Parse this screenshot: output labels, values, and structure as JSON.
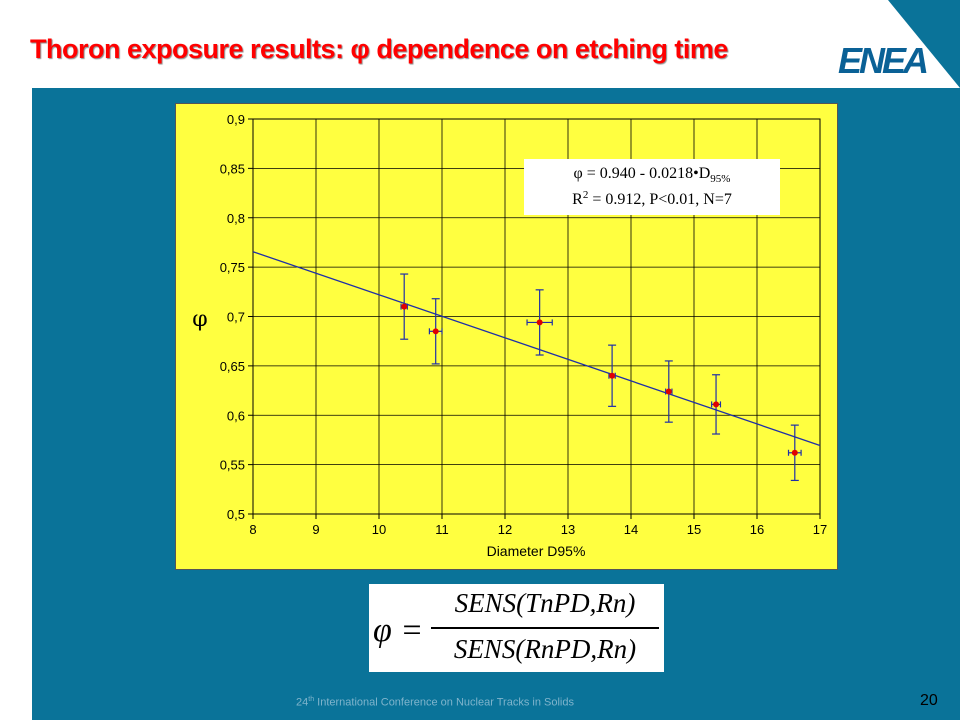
{
  "slide": {
    "title": "Thoron exposure results: φ dependence on etching time",
    "logo": "ENEA",
    "footer_ordinal": "24",
    "footer_sup": "th",
    "footer_rest": " International Conference on Nuclear Tracks in Solids",
    "page_number": "20",
    "colors": {
      "title": "#ff0000",
      "panel": "#0a7399",
      "chart_bg": "#ffff40",
      "accent": "#0a6196"
    }
  },
  "formula": {
    "lhs": "φ =",
    "numerator": "SENS(TnPD,Rn)",
    "denominator": "SENS(RnPD,Rn)"
  },
  "chart_data": {
    "type": "scatter",
    "xlabel": "Diameter D95%",
    "ylabel": "φ",
    "xlim": [
      8,
      17
    ],
    "ylim": [
      0.5,
      0.9
    ],
    "x_ticks": [
      8,
      9,
      10,
      11,
      12,
      13,
      14,
      15,
      16,
      17
    ],
    "x_tick_labels": [
      "8",
      "9",
      "10",
      "11",
      "12",
      "13",
      "14",
      "15",
      "16",
      "17"
    ],
    "y_ticks": [
      0.5,
      0.55,
      0.6,
      0.65,
      0.7,
      0.75,
      0.8,
      0.85,
      0.9
    ],
    "y_tick_labels": [
      "0,5",
      "0,55",
      "0,6",
      "0,65",
      "0,7",
      "0,75",
      "0,8",
      "0,85",
      "0,9"
    ],
    "grid": true,
    "points": [
      {
        "x": 10.4,
        "y": 0.71,
        "yerr": 0.033,
        "xerr": 0.05
      },
      {
        "x": 10.9,
        "y": 0.685,
        "yerr": 0.033,
        "xerr": 0.1
      },
      {
        "x": 12.55,
        "y": 0.694,
        "yerr": 0.033,
        "xerr": 0.2
      },
      {
        "x": 13.7,
        "y": 0.64,
        "yerr": 0.031,
        "xerr": 0.05
      },
      {
        "x": 14.6,
        "y": 0.624,
        "yerr": 0.031,
        "xerr": 0.05
      },
      {
        "x": 15.35,
        "y": 0.611,
        "yerr": 0.03,
        "xerr": 0.07
      },
      {
        "x": 16.6,
        "y": 0.562,
        "yerr": 0.028,
        "xerr": 0.1
      }
    ],
    "fit": {
      "intercept": 0.94,
      "slope": -0.0218
    },
    "annotation": {
      "line1_prefix": "φ = 0.940 - 0.0218•D",
      "line1_sub": "95%",
      "line2_prefix": "R",
      "line2_sup": "2",
      "line2_rest": " = 0.912, P<0.01, N=7"
    },
    "colors": {
      "fit_line": "#1f2fa8",
      "marker": "#e00000",
      "error_bar": "#1f2fa8",
      "grid": "#000000"
    }
  }
}
